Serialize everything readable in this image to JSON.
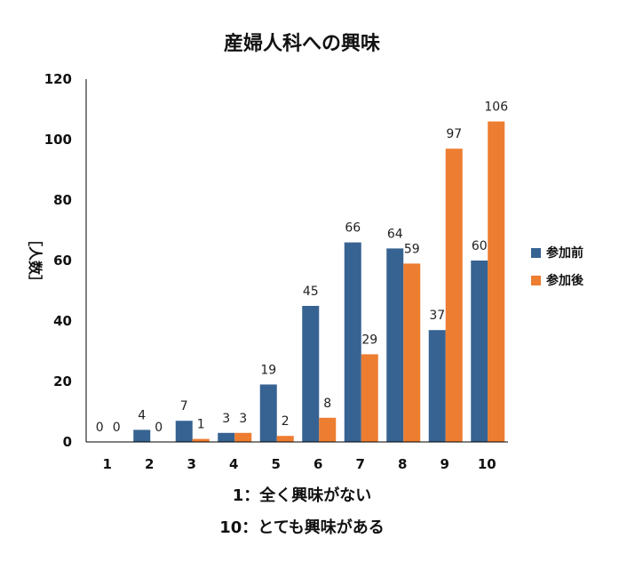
{
  "chart_data": {
    "type": "bar",
    "title": "産婦人科への興味",
    "ylabel": "［人数］",
    "xlabel": "",
    "categories": [
      "1",
      "2",
      "3",
      "4",
      "5",
      "6",
      "7",
      "8",
      "9",
      "10"
    ],
    "series": [
      {
        "name": "参加前",
        "color": "#376392",
        "values": [
          0,
          4,
          7,
          3,
          19,
          45,
          66,
          64,
          37,
          60
        ]
      },
      {
        "name": "参加後",
        "color": "#ED7D31",
        "values": [
          0,
          0,
          1,
          3,
          2,
          8,
          29,
          59,
          97,
          106
        ]
      }
    ],
    "ylim": [
      0,
      120
    ],
    "yticks": [
      "0",
      "20",
      "40",
      "60",
      "80",
      "100",
      "120"
    ],
    "grid": false,
    "legend_position": "right",
    "notes": [
      "1：全く興味がない",
      "10：とても興味がある"
    ]
  }
}
